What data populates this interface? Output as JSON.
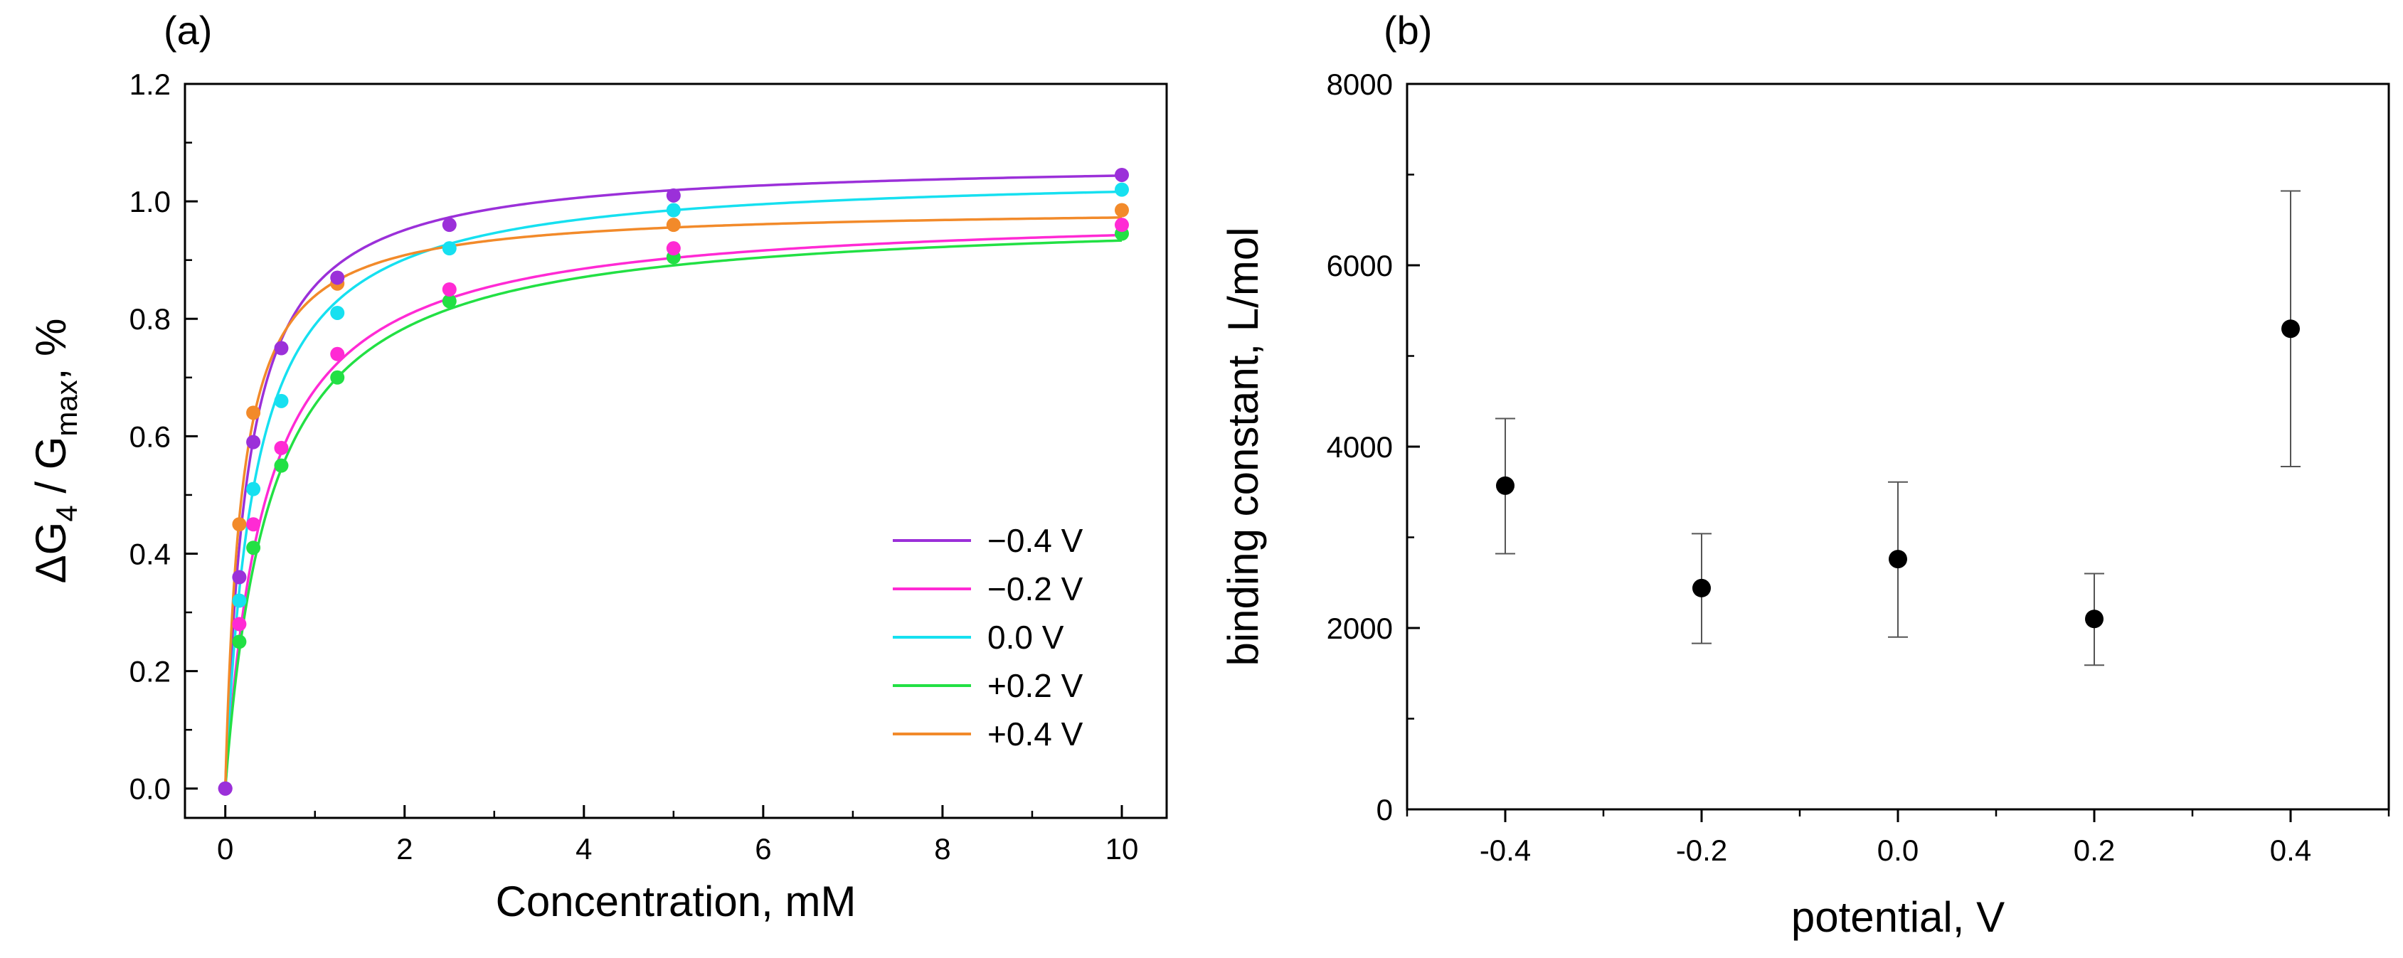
{
  "chart_data": [
    {
      "type": "scatter",
      "panel_label": "(a)",
      "xlabel": "Concentration, mM",
      "ylabel": {
        "pre": "ΔG",
        "sub1": "4",
        "mid": " / G",
        "sub2": "max",
        "post": ", %"
      },
      "xlim": [
        -0.45,
        10.5
      ],
      "ylim": [
        -0.05,
        1.2
      ],
      "xticks": [
        "0",
        "2",
        "4",
        "6",
        "8",
        "10"
      ],
      "yticks": [
        "0.0",
        "0.2",
        "0.4",
        "0.6",
        "0.8",
        "1.0",
        "1.2"
      ],
      "x": [
        0,
        0.15625,
        0.3125,
        0.625,
        1.25,
        2.5,
        5,
        10
      ],
      "series": [
        {
          "name": "−0.4 V",
          "color": "#9b30d9",
          "values": [
            0,
            0.36,
            0.59,
            0.75,
            0.87,
            0.96,
            1.01,
            1.045
          ],
          "fit": {
            "A": 1.07,
            "K": 0.25
          }
        },
        {
          "name": "−0.2 V",
          "color": "#ff2ad4",
          "values": [
            null,
            0.28,
            0.45,
            0.58,
            0.74,
            0.85,
            0.92,
            0.96
          ],
          "fit": {
            "A": 0.985,
            "K": 0.45
          }
        },
        {
          "name": " 0.0 V",
          "color": "#16e0f0",
          "values": [
            null,
            0.32,
            0.51,
            0.66,
            0.81,
            0.92,
            0.985,
            1.02
          ],
          "fit": {
            "A": 1.05,
            "K": 0.33
          }
        },
        {
          "name": "+0.2 V",
          "color": "#22e044",
          "values": [
            null,
            0.25,
            0.41,
            0.55,
            0.7,
            0.83,
            0.905,
            0.945
          ],
          "fit": {
            "A": 0.98,
            "K": 0.5
          }
        },
        {
          "name": "+0.4 V",
          "color": "#f28a2a",
          "values": [
            null,
            0.45,
            0.64,
            null,
            0.86,
            null,
            0.96,
            0.985
          ],
          "fit": {
            "A": 0.99,
            "K": 0.18
          }
        }
      ],
      "legend": "right, lower-middle"
    },
    {
      "type": "scatter",
      "panel_label": "(b)",
      "xlabel": "potential, V",
      "ylabel": "binding constant, L/mol",
      "xlim": [
        -0.5,
        0.5
      ],
      "ylim": [
        0,
        8000
      ],
      "xticks": [
        "-0.4",
        "-0.2",
        "0.0",
        "0.2",
        "0.4"
      ],
      "yticks": [
        "0",
        "2000",
        "4000",
        "6000",
        "8000"
      ],
      "x": [
        -0.4,
        -0.2,
        0.0,
        0.2,
        0.4
      ],
      "values": [
        3570,
        2440,
        2760,
        2100,
        5300
      ],
      "err_low": [
        2820,
        1830,
        1900,
        1590,
        3780
      ],
      "err_high": [
        4310,
        3040,
        3610,
        2600,
        6820
      ],
      "color": "#000000"
    }
  ]
}
